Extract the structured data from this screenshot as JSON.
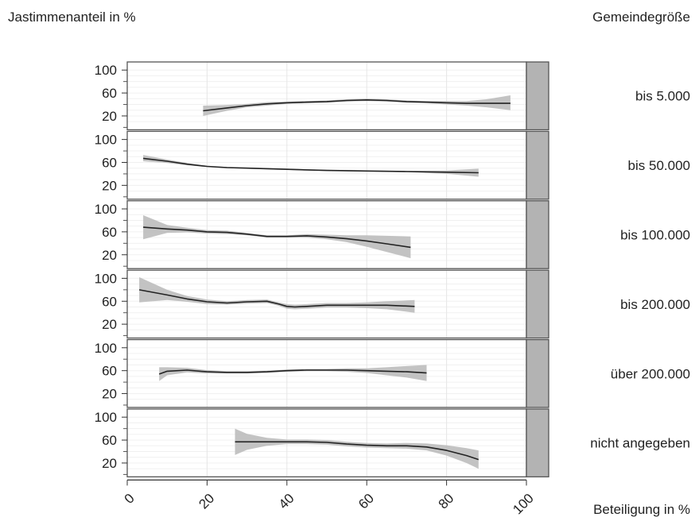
{
  "labels": {
    "y_title": "Jastimmenanteil in %",
    "strip_title": "Gemeindegröße",
    "x_title": "Beteiligung in %"
  },
  "chart_data": {
    "type": "line",
    "layout": "faceted rows with shared x axis and right-hand strip labels",
    "title": "",
    "xlabel": "Beteiligung in %",
    "ylabel": "Jastimmenanteil in %",
    "xlim": [
      0,
      100
    ],
    "ylim": [
      0,
      110
    ],
    "x_ticks": [
      0,
      20,
      40,
      60,
      80,
      100
    ],
    "y_ticks": [
      20,
      60,
      100
    ],
    "grid": true,
    "colors": {
      "line": "#222222",
      "band": "#bdbdbd",
      "strip": "#b3b3b3",
      "grid": "#e6e6e6"
    },
    "panels": [
      {
        "label": "bis 5.000",
        "x": [
          19,
          25,
          30,
          35,
          40,
          45,
          50,
          55,
          60,
          65,
          70,
          75,
          80,
          85,
          90,
          96
        ],
        "y": [
          29,
          34,
          38,
          41,
          43,
          44,
          45,
          47,
          48,
          47,
          45,
          44,
          43,
          42,
          42,
          42
        ],
        "lower": [
          20,
          29,
          35,
          38,
          41,
          42,
          43,
          45,
          46,
          45,
          43,
          42,
          40,
          38,
          35,
          30
        ],
        "upper": [
          38,
          39,
          41,
          44,
          45,
          46,
          47,
          49,
          50,
          49,
          47,
          46,
          46,
          46,
          49,
          56
        ]
      },
      {
        "label": "bis 50.000",
        "x": [
          4,
          10,
          15,
          20,
          25,
          30,
          40,
          50,
          60,
          70,
          80,
          88
        ],
        "y": [
          67,
          62,
          57,
          53,
          51,
          50,
          48,
          46,
          45,
          44,
          43,
          42
        ],
        "lower": [
          62,
          59,
          55,
          52,
          50,
          49,
          47,
          45,
          44,
          43,
          40,
          35
        ],
        "upper": [
          73,
          65,
          59,
          54,
          52,
          51,
          49,
          47,
          46,
          45,
          46,
          49
        ]
      },
      {
        "label": "bis 100.000",
        "x": [
          4,
          10,
          15,
          20,
          25,
          30,
          35,
          40,
          45,
          50,
          55,
          60,
          65,
          71
        ],
        "y": [
          68,
          65,
          63,
          60,
          59,
          56,
          52,
          52,
          53,
          51,
          48,
          44,
          39,
          33
        ],
        "lower": [
          47,
          58,
          59,
          57,
          56,
          54,
          50,
          50,
          50,
          47,
          42,
          34,
          25,
          14
        ],
        "upper": [
          89,
          72,
          67,
          63,
          62,
          58,
          54,
          54,
          56,
          55,
          54,
          54,
          53,
          52
        ]
      },
      {
        "label": "bis 200.000",
        "x": [
          3,
          10,
          15,
          20,
          25,
          30,
          35,
          38,
          40,
          42,
          45,
          50,
          55,
          60,
          65,
          72
        ],
        "y": [
          80,
          71,
          64,
          59,
          57,
          59,
          60,
          55,
          51,
          50,
          51,
          53,
          53,
          53,
          53,
          51
        ],
        "lower": [
          58,
          62,
          59,
          55,
          54,
          56,
          57,
          52,
          47,
          46,
          47,
          49,
          49,
          48,
          46,
          40
        ],
        "upper": [
          102,
          80,
          69,
          63,
          60,
          62,
          63,
          58,
          55,
          54,
          55,
          57,
          57,
          58,
          60,
          62
        ]
      },
      {
        "label": "über 200.000",
        "x": [
          8,
          10,
          15,
          20,
          25,
          30,
          35,
          40,
          45,
          50,
          55,
          60,
          65,
          70,
          75
        ],
        "y": [
          54,
          59,
          61,
          58,
          57,
          57,
          58,
          60,
          61,
          61,
          61,
          60,
          59,
          58,
          56
        ],
        "lower": [
          42,
          52,
          57,
          55,
          55,
          55,
          56,
          58,
          59,
          59,
          58,
          56,
          52,
          48,
          42
        ],
        "upper": [
          66,
          66,
          65,
          61,
          59,
          59,
          60,
          62,
          63,
          63,
          64,
          64,
          66,
          68,
          70
        ]
      },
      {
        "label": "nicht angegeben",
        "x": [
          27,
          30,
          35,
          40,
          45,
          50,
          55,
          60,
          65,
          70,
          75,
          80,
          85,
          88
        ],
        "y": [
          57,
          57,
          57,
          57,
          57,
          56,
          53,
          51,
          50,
          50,
          48,
          42,
          33,
          26
        ],
        "lower": [
          34,
          43,
          50,
          53,
          53,
          52,
          49,
          47,
          46,
          45,
          42,
          33,
          20,
          10
        ],
        "upper": [
          80,
          71,
          64,
          61,
          61,
          60,
          57,
          55,
          54,
          55,
          54,
          51,
          46,
          42
        ]
      }
    ]
  }
}
